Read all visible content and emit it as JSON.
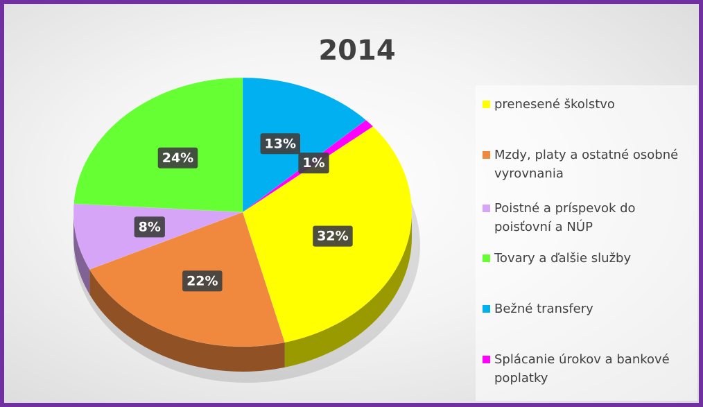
{
  "chart_data": {
    "type": "pie",
    "title": "2014",
    "three_d": true,
    "legend": "right",
    "categories": [
      "prenesené školstvo",
      "Mzdy, platy a ostatné osobné vyrovnania",
      "Poistné a príspevok do poisťovní a NÚP",
      "Tovary a ďalšie služby",
      "Bežné transfery",
      "Splácanie úrokov a bankové poplatky"
    ],
    "values": [
      32,
      22,
      8,
      24,
      13,
      1
    ],
    "value_labels": [
      "32%",
      "22%",
      "8%",
      "24%",
      "13%",
      "1%"
    ],
    "colors": [
      "#ffff00",
      "#f0883e",
      "#d6a5f7",
      "#66ff33",
      "#00b0f0",
      "#ff00ff"
    ]
  }
}
